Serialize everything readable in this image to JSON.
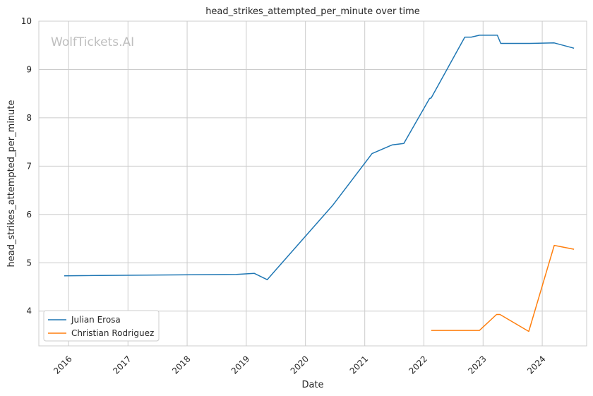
{
  "chart_data": {
    "type": "line",
    "title": "head_strikes_attempted_per_minute over time",
    "xlabel": "Date",
    "ylabel": "head_strikes_attempted_per_minute",
    "watermark": "WolfTickets.AI",
    "xlim": [
      "2015-07-01",
      "2024-10-01"
    ],
    "ylim": [
      3.28,
      10.0
    ],
    "x_ticks": [
      "2016",
      "2017",
      "2018",
      "2019",
      "2020",
      "2021",
      "2022",
      "2023",
      "2024"
    ],
    "y_ticks": [
      4,
      5,
      6,
      7,
      8,
      9,
      10
    ],
    "grid": true,
    "legend_position": "lower-left",
    "series": [
      {
        "name": "Julian Erosa",
        "color": "#1f77b4",
        "points": [
          [
            "2015-12-05",
            4.73
          ],
          [
            "2018-11-01",
            4.76
          ],
          [
            "2019-02-20",
            4.78
          ],
          [
            "2019-05-10",
            4.65
          ],
          [
            "2020-06-20",
            6.2
          ],
          [
            "2021-02-15",
            7.26
          ],
          [
            "2021-06-20",
            7.44
          ],
          [
            "2021-08-30",
            7.47
          ],
          [
            "2022-02-05",
            8.4
          ],
          [
            "2022-02-15",
            8.41
          ],
          [
            "2022-09-10",
            9.67
          ],
          [
            "2022-10-20",
            9.67
          ],
          [
            "2022-12-10",
            9.71
          ],
          [
            "2023-03-30",
            9.71
          ],
          [
            "2023-04-20",
            9.54
          ],
          [
            "2023-10-15",
            9.54
          ],
          [
            "2024-03-15",
            9.55
          ],
          [
            "2024-07-15",
            9.44
          ]
        ]
      },
      {
        "name": "Christian Rodriguez",
        "color": "#ff7f0e",
        "points": [
          [
            "2022-02-15",
            3.6
          ],
          [
            "2022-12-10",
            3.6
          ],
          [
            "2023-03-25",
            3.93
          ],
          [
            "2023-04-15",
            3.93
          ],
          [
            "2023-10-10",
            3.58
          ],
          [
            "2024-03-15",
            5.36
          ],
          [
            "2024-07-15",
            5.28
          ]
        ]
      }
    ]
  }
}
